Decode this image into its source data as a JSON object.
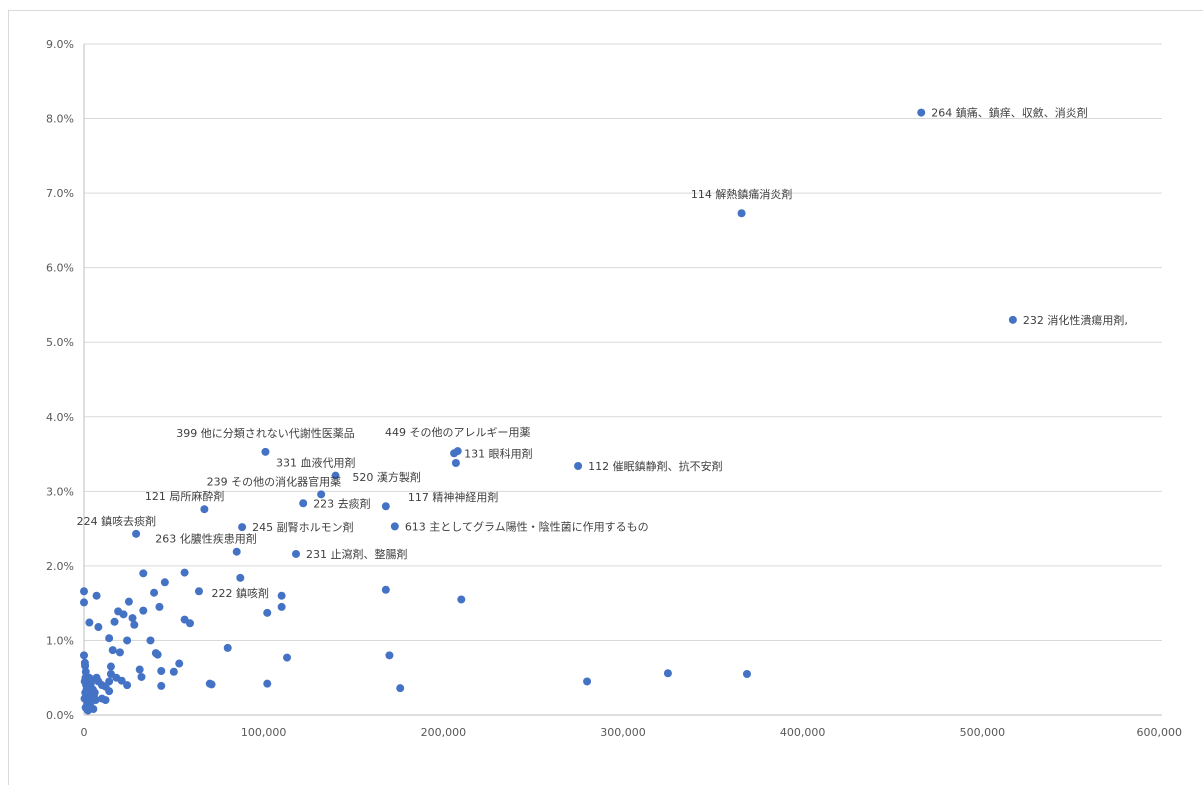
{
  "chart_data": {
    "type": "scatter",
    "title": "",
    "xlabel": "",
    "ylabel": "",
    "xlim": [
      0,
      600000
    ],
    "ylim": [
      0,
      0.09
    ],
    "grid": "horizontal",
    "legend": "none",
    "marker_color": "#4472C4",
    "x_ticks": [
      "0",
      "100,000",
      "200,000",
      "300,000",
      "400,000",
      "500,000",
      "600,000"
    ],
    "y_ticks": [
      "0.0%",
      "1.0%",
      "2.0%",
      "3.0%",
      "4.0%",
      "5.0%",
      "6.0%",
      "7.0%",
      "8.0%",
      "9.0%"
    ],
    "labeled_points": [
      {
        "x": 466000,
        "y": 0.0808,
        "label": "264 鎮痛、鎮痒、収斂、消炎剤",
        "pos": "right"
      },
      {
        "x": 366000,
        "y": 0.0673,
        "label": "114 解熱鎮痛消炎剤",
        "pos": "above"
      },
      {
        "x": 517000,
        "y": 0.053,
        "label": "232 消化性潰瘍用剤,",
        "pos": "right"
      },
      {
        "x": 101000,
        "y": 0.0353,
        "label": "399 他に分類されない代謝性医薬品",
        "pos": "above"
      },
      {
        "x": 208000,
        "y": 0.0354,
        "label": "449 その他のアレルギー用薬",
        "pos": "above"
      },
      {
        "x": 206000,
        "y": 0.0351,
        "label": "131 眼科用剤",
        "pos": "right"
      },
      {
        "x": 140000,
        "y": 0.0321,
        "label": "331 血液代用剤",
        "pos": "above-left"
      },
      {
        "x": 275000,
        "y": 0.0334,
        "label": "112 催眠鎮静剤、抗不安剤",
        "pos": "right"
      },
      {
        "x": 207000,
        "y": 0.0338,
        "label": "520 漢方製剤",
        "pos": "below-left"
      },
      {
        "x": 67000,
        "y": 0.0276,
        "label": "121 局所麻酔剤",
        "pos": "above-left"
      },
      {
        "x": 132000,
        "y": 0.0296,
        "label": "239 その他の消化器官用薬",
        "pos": "above-left"
      },
      {
        "x": 122000,
        "y": 0.0284,
        "label": "223 去痰剤",
        "pos": "right"
      },
      {
        "x": 168000,
        "y": 0.028,
        "label": "117 精神神経用剤",
        "pos": "above-right"
      },
      {
        "x": 29000,
        "y": 0.0243,
        "label": "224 鎮咳去痰剤",
        "pos": "above-left"
      },
      {
        "x": 88000,
        "y": 0.0252,
        "label": "245 副腎ホルモン剤",
        "pos": "right"
      },
      {
        "x": 173000,
        "y": 0.0253,
        "label": "613 主としてグラム陽性・陰性菌に作用するもの",
        "pos": "right"
      },
      {
        "x": 85000,
        "y": 0.0219,
        "label": "263 化膿性疾患用剤",
        "pos": "above-left"
      },
      {
        "x": 118000,
        "y": 0.0216,
        "label": "231 止瀉剤、整腸剤",
        "pos": "right"
      },
      {
        "x": 87000,
        "y": 0.0184,
        "label": "222 鎮咳剤",
        "pos": "below"
      }
    ],
    "points": [
      [
        168000,
        0.0168
      ],
      [
        210000,
        0.0155
      ],
      [
        110000,
        0.016
      ],
      [
        110000,
        0.0145
      ],
      [
        102000,
        0.0137
      ],
      [
        113000,
        0.0077
      ],
      [
        102000,
        0.0042
      ],
      [
        170000,
        0.008
      ],
      [
        176000,
        0.0036
      ],
      [
        280000,
        0.0045
      ],
      [
        325000,
        0.0056
      ],
      [
        369000,
        0.0055
      ],
      [
        56000,
        0.0191
      ],
      [
        64000,
        0.0166
      ],
      [
        45000,
        0.0178
      ],
      [
        39000,
        0.0164
      ],
      [
        33000,
        0.019
      ],
      [
        42000,
        0.0145
      ],
      [
        33000,
        0.014
      ],
      [
        56000,
        0.0128
      ],
      [
        59000,
        0.0123
      ],
      [
        80000,
        0.009
      ],
      [
        70000,
        0.0042
      ],
      [
        71000,
        0.0041
      ],
      [
        53000,
        0.0069
      ],
      [
        50000,
        0.0058
      ],
      [
        43000,
        0.0059
      ],
      [
        41000,
        0.0081
      ],
      [
        40000,
        0.0083
      ],
      [
        37000,
        0.01
      ],
      [
        31000,
        0.0061
      ],
      [
        32000,
        0.0051
      ],
      [
        43000,
        0.0039
      ],
      [
        24000,
        0.004
      ],
      [
        21000,
        0.0046
      ],
      [
        18000,
        0.005
      ],
      [
        15000,
        0.0055
      ],
      [
        15000,
        0.0065
      ],
      [
        16000,
        0.0087
      ],
      [
        20000,
        0.0084
      ],
      [
        14000,
        0.0103
      ],
      [
        24000,
        0.01
      ],
      [
        17000,
        0.0125
      ],
      [
        19000,
        0.0139
      ],
      [
        22000,
        0.0135
      ],
      [
        27000,
        0.013
      ],
      [
        25000,
        0.0152
      ],
      [
        28000,
        0.0121
      ],
      [
        7000,
        0.016
      ],
      [
        3000,
        0.0124
      ],
      [
        8000,
        0.0118
      ],
      [
        0,
        0.0166
      ],
      [
        0,
        0.0151
      ],
      [
        0,
        0.008
      ],
      [
        500,
        0.007
      ],
      [
        600,
        0.0066
      ],
      [
        1000,
        0.0058
      ],
      [
        800,
        0.005
      ],
      [
        400,
        0.0045
      ],
      [
        1200,
        0.004
      ],
      [
        1500,
        0.0035
      ],
      [
        700,
        0.003
      ],
      [
        2000,
        0.0027
      ],
      [
        300,
        0.0022
      ],
      [
        2500,
        0.002
      ],
      [
        1800,
        0.0015
      ],
      [
        900,
        0.001
      ],
      [
        3500,
        0.0012
      ],
      [
        1600,
        0.0008
      ],
      [
        2200,
        0.0006
      ],
      [
        3000,
        0.0018
      ],
      [
        4000,
        0.0024
      ],
      [
        4500,
        0.003
      ],
      [
        5000,
        0.0034
      ],
      [
        3800,
        0.0042
      ],
      [
        4200,
        0.0048
      ],
      [
        6000,
        0.003
      ],
      [
        5500,
        0.0025
      ],
      [
        6500,
        0.002
      ],
      [
        7000,
        0.005
      ],
      [
        8000,
        0.0045
      ],
      [
        10000,
        0.004
      ],
      [
        12000,
        0.0038
      ],
      [
        14000,
        0.0045
      ],
      [
        14000,
        0.0032
      ],
      [
        10000,
        0.0022
      ],
      [
        12000,
        0.002
      ],
      [
        2800,
        0.005
      ],
      [
        3300,
        0.0015
      ],
      [
        5200,
        0.0008
      ]
    ]
  }
}
